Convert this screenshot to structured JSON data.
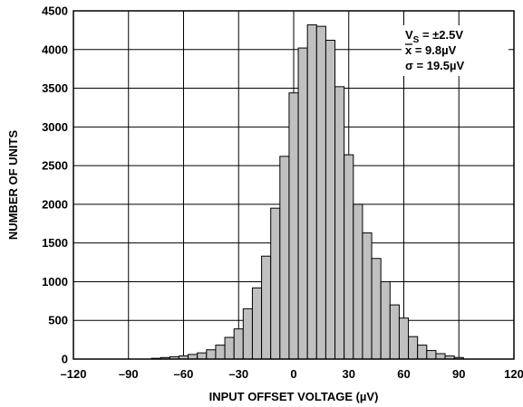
{
  "chart_data": {
    "type": "bar",
    "title": "",
    "xlabel": "INPUT OFFSET VOLTAGE (µV)",
    "ylabel": "NUMBER OF UNITS",
    "xlim": [
      -120,
      120
    ],
    "ylim": [
      0,
      4500
    ],
    "x_ticks": [
      "–120",
      "–90",
      "–60",
      "–30",
      "0",
      "30",
      "60",
      "90",
      "120"
    ],
    "y_ticks": [
      "0",
      "500",
      "1000",
      "1500",
      "2000",
      "2500",
      "3000",
      "3500",
      "4000",
      "4500"
    ],
    "grid": true,
    "bin_width": 5,
    "bins": [
      {
        "x": -75,
        "value": 10
      },
      {
        "x": -70,
        "value": 20
      },
      {
        "x": -65,
        "value": 30
      },
      {
        "x": -60,
        "value": 40
      },
      {
        "x": -55,
        "value": 60
      },
      {
        "x": -50,
        "value": 80
      },
      {
        "x": -45,
        "value": 120
      },
      {
        "x": -40,
        "value": 180
      },
      {
        "x": -35,
        "value": 280
      },
      {
        "x": -30,
        "value": 390
      },
      {
        "x": -25,
        "value": 650
      },
      {
        "x": -20,
        "value": 920
      },
      {
        "x": -15,
        "value": 1330
      },
      {
        "x": -10,
        "value": 1950
      },
      {
        "x": -5,
        "value": 2620
      },
      {
        "x": 0,
        "value": 3440
      },
      {
        "x": 5,
        "value": 4020
      },
      {
        "x": 10,
        "value": 4320
      },
      {
        "x": 15,
        "value": 4300
      },
      {
        "x": 20,
        "value": 4120
      },
      {
        "x": 25,
        "value": 3520
      },
      {
        "x": 30,
        "value": 2640
      },
      {
        "x": 35,
        "value": 2000
      },
      {
        "x": 40,
        "value": 1630
      },
      {
        "x": 45,
        "value": 1300
      },
      {
        "x": 50,
        "value": 1000
      },
      {
        "x": 55,
        "value": 700
      },
      {
        "x": 60,
        "value": 530
      },
      {
        "x": 65,
        "value": 290
      },
      {
        "x": 70,
        "value": 180
      },
      {
        "x": 75,
        "value": 110
      },
      {
        "x": 80,
        "value": 70
      },
      {
        "x": 85,
        "value": 40
      },
      {
        "x": 90,
        "value": 20
      }
    ],
    "annotations": [
      {
        "main": "V",
        "sub": "S",
        "rest": " = ±2.5V"
      },
      {
        "main": "x",
        "rest": " = 9.8µV",
        "overbar": true
      },
      {
        "main": "σ",
        "rest": " = 19.5µV"
      }
    ],
    "colors": {
      "bar_fill": "#c0c0c0",
      "bar_stroke": "#000000",
      "grid": "#000000",
      "background": "#ffffff"
    }
  }
}
